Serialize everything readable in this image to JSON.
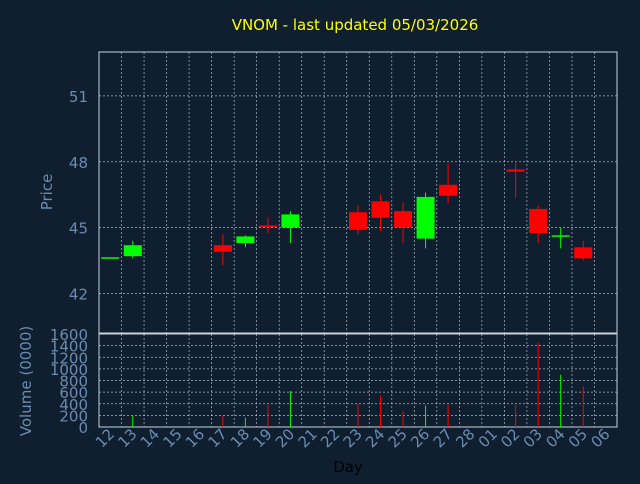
{
  "title": "VNOM - last updated 05/03/2026",
  "colors": {
    "background": "#0f1f2f",
    "title": "#ffff00",
    "axis_text": "#6b8bb0",
    "axis_line": "#c8d2dc",
    "grid": "#c8d2dc",
    "up": "#00ff00",
    "down": "#ff0000"
  },
  "chart_data": [
    {
      "type": "candlestick",
      "title": "VNOM - last updated 05/03/2026",
      "ylabel": "Price",
      "ylim": [
        40.2,
        53.0
      ],
      "yticks": [
        42,
        45,
        48,
        51
      ],
      "grid": true,
      "categories": [
        "12",
        "13",
        "14",
        "15",
        "16",
        "17",
        "18",
        "19",
        "20",
        "21",
        "22",
        "23",
        "24",
        "25",
        "26",
        "27",
        "28",
        "01",
        "02",
        "03",
        "04",
        "05",
        "06"
      ],
      "series": [
        {
          "x": "12",
          "open": 43.65,
          "high": 43.65,
          "low": 43.65,
          "close": 43.65
        },
        {
          "x": "13",
          "open": 43.7,
          "high": 44.4,
          "low": 43.6,
          "close": 44.2
        },
        {
          "x": "17",
          "open": 44.2,
          "high": 44.7,
          "low": 43.3,
          "close": 43.9
        },
        {
          "x": "18",
          "open": 44.3,
          "high": 44.65,
          "low": 44.1,
          "close": 44.6
        },
        {
          "x": "19",
          "open": 45.1,
          "high": 45.45,
          "low": 44.75,
          "close": 45.05
        },
        {
          "x": "20",
          "open": 45.0,
          "high": 45.75,
          "low": 44.3,
          "close": 45.6
        },
        {
          "x": "23",
          "open": 45.7,
          "high": 46.0,
          "low": 44.7,
          "close": 44.9
        },
        {
          "x": "24",
          "open": 46.2,
          "high": 46.5,
          "low": 44.85,
          "close": 45.45
        },
        {
          "x": "25",
          "open": 45.75,
          "high": 46.15,
          "low": 44.3,
          "close": 45.0
        },
        {
          "x": "26",
          "open": 44.5,
          "high": 46.6,
          "low": 44.05,
          "close": 46.4
        },
        {
          "x": "27",
          "open": 46.95,
          "high": 47.9,
          "low": 46.1,
          "close": 46.45
        },
        {
          "x": "02",
          "open": 47.65,
          "high": 48.05,
          "low": 46.35,
          "close": 47.55
        },
        {
          "x": "03",
          "open": 45.85,
          "high": 46.0,
          "low": 44.3,
          "close": 44.75
        },
        {
          "x": "04",
          "open": 44.6,
          "high": 45.0,
          "low": 44.05,
          "close": 44.65
        },
        {
          "x": "05",
          "open": 44.1,
          "high": 44.4,
          "low": 43.5,
          "close": 43.6
        }
      ]
    },
    {
      "type": "bar",
      "ylabel": "Volume (0000)",
      "xlabel": "Day",
      "ylim": [
        0,
        1600
      ],
      "yticks": [
        0,
        200,
        400,
        600,
        800,
        1000,
        1200,
        1400,
        1600
      ],
      "grid": true,
      "categories": [
        "12",
        "13",
        "14",
        "15",
        "16",
        "17",
        "18",
        "19",
        "20",
        "21",
        "22",
        "23",
        "24",
        "25",
        "26",
        "27",
        "28",
        "01",
        "02",
        "03",
        "04",
        "05",
        "06"
      ],
      "values": [
        {
          "x": "13",
          "value": 200,
          "direction": "up"
        },
        {
          "x": "17",
          "value": 200,
          "direction": "down"
        },
        {
          "x": "18",
          "value": 160,
          "direction": "up"
        },
        {
          "x": "19",
          "value": 380,
          "direction": "down"
        },
        {
          "x": "20",
          "value": 620,
          "direction": "up"
        },
        {
          "x": "23",
          "value": 400,
          "direction": "down"
        },
        {
          "x": "24",
          "value": 540,
          "direction": "down"
        },
        {
          "x": "25",
          "value": 270,
          "direction": "down"
        },
        {
          "x": "26",
          "value": 370,
          "direction": "up"
        },
        {
          "x": "27",
          "value": 380,
          "direction": "down"
        },
        {
          "x": "02",
          "value": 380,
          "direction": "down"
        },
        {
          "x": "03",
          "value": 1450,
          "direction": "down"
        },
        {
          "x": "04",
          "value": 900,
          "direction": "up"
        },
        {
          "x": "05",
          "value": 700,
          "direction": "down"
        }
      ]
    }
  ]
}
